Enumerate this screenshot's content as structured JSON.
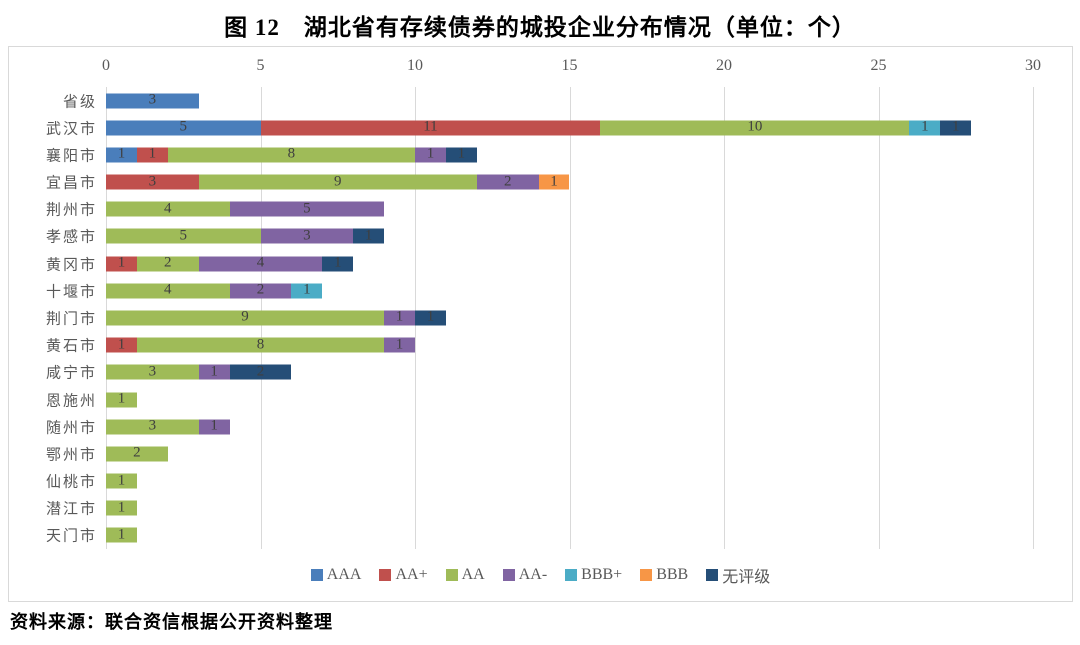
{
  "title": "图 12　湖北省有存续债券的城投企业分布情况（单位：个）",
  "source": "资料来源：联合资信根据公开资料整理",
  "chart_data": {
    "type": "bar",
    "orientation": "horizontal",
    "stacked": true,
    "title": "图 12　湖北省有存续债券的城投企业分布情况（单位：个）",
    "unit": "个",
    "xlim": [
      0,
      30
    ],
    "xticks": [
      0,
      5,
      10,
      15,
      20,
      25,
      30
    ],
    "grid": true,
    "legend_position": "bottom",
    "value_labels": "inside",
    "categories": [
      "省级",
      "武汉市",
      "襄阳市",
      "宜昌市",
      "荆州市",
      "孝感市",
      "黄冈市",
      "十堰市",
      "荆门市",
      "黄石市",
      "咸宁市",
      "恩施州",
      "随州市",
      "鄂州市",
      "仙桃市",
      "潜江市",
      "天门市"
    ],
    "series": [
      {
        "name": "AAA",
        "color": "#4a7ebb",
        "values": [
          3,
          5,
          1,
          0,
          0,
          0,
          0,
          0,
          0,
          0,
          0,
          0,
          0,
          0,
          0,
          0,
          0
        ]
      },
      {
        "name": "AA+",
        "color": "#c0504d",
        "values": [
          0,
          11,
          1,
          3,
          0,
          0,
          1,
          0,
          0,
          1,
          0,
          0,
          0,
          0,
          0,
          0,
          0
        ]
      },
      {
        "name": "AA",
        "color": "#9fbb58",
        "values": [
          0,
          10,
          8,
          9,
          4,
          5,
          2,
          4,
          9,
          8,
          3,
          1,
          3,
          2,
          1,
          1,
          1
        ]
      },
      {
        "name": "AA-",
        "color": "#8064a2",
        "values": [
          0,
          0,
          1,
          2,
          5,
          3,
          4,
          2,
          1,
          1,
          1,
          0,
          1,
          0,
          0,
          0,
          0
        ]
      },
      {
        "name": "BBB+",
        "color": "#4bacc6",
        "values": [
          0,
          1,
          0,
          0,
          0,
          0,
          0,
          1,
          0,
          0,
          0,
          0,
          0,
          0,
          0,
          0,
          0
        ]
      },
      {
        "name": "BBB",
        "color": "#f79646",
        "values": [
          0,
          0,
          0,
          1,
          0,
          0,
          0,
          0,
          0,
          0,
          0,
          0,
          0,
          0,
          0,
          0,
          0
        ]
      },
      {
        "name": "无评级",
        "color": "#254e77",
        "values": [
          0,
          1,
          1,
          0,
          0,
          1,
          1,
          0,
          1,
          0,
          2,
          0,
          0,
          0,
          0,
          0,
          0
        ]
      }
    ]
  }
}
